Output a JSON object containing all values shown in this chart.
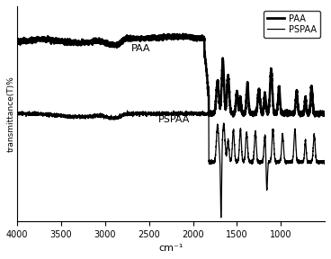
{
  "title": "",
  "xlabel": "cm⁻¹",
  "ylabel": "transmittance(T)%",
  "xlim": [
    4000,
    500
  ],
  "ylim": [
    -80,
    120
  ],
  "legend_labels": [
    "PAA",
    "PSPAA"
  ],
  "paa_label": "PAA",
  "pspaa_label": "PSPAA",
  "background_color": "#ffffff",
  "line_color_paa": "#000000",
  "line_color_pspaa": "#000000",
  "paa_lw": 1.8,
  "pspaa_lw": 0.9,
  "paa_baseline": 90,
  "pspaa_baseline": 20,
  "xticks": [
    4000,
    3500,
    3000,
    2500,
    2000,
    1500,
    1000
  ],
  "xtick_labels": [
    "4000",
    "3500",
    "3000",
    "2500",
    "2000",
    "1500",
    "1000"
  ]
}
